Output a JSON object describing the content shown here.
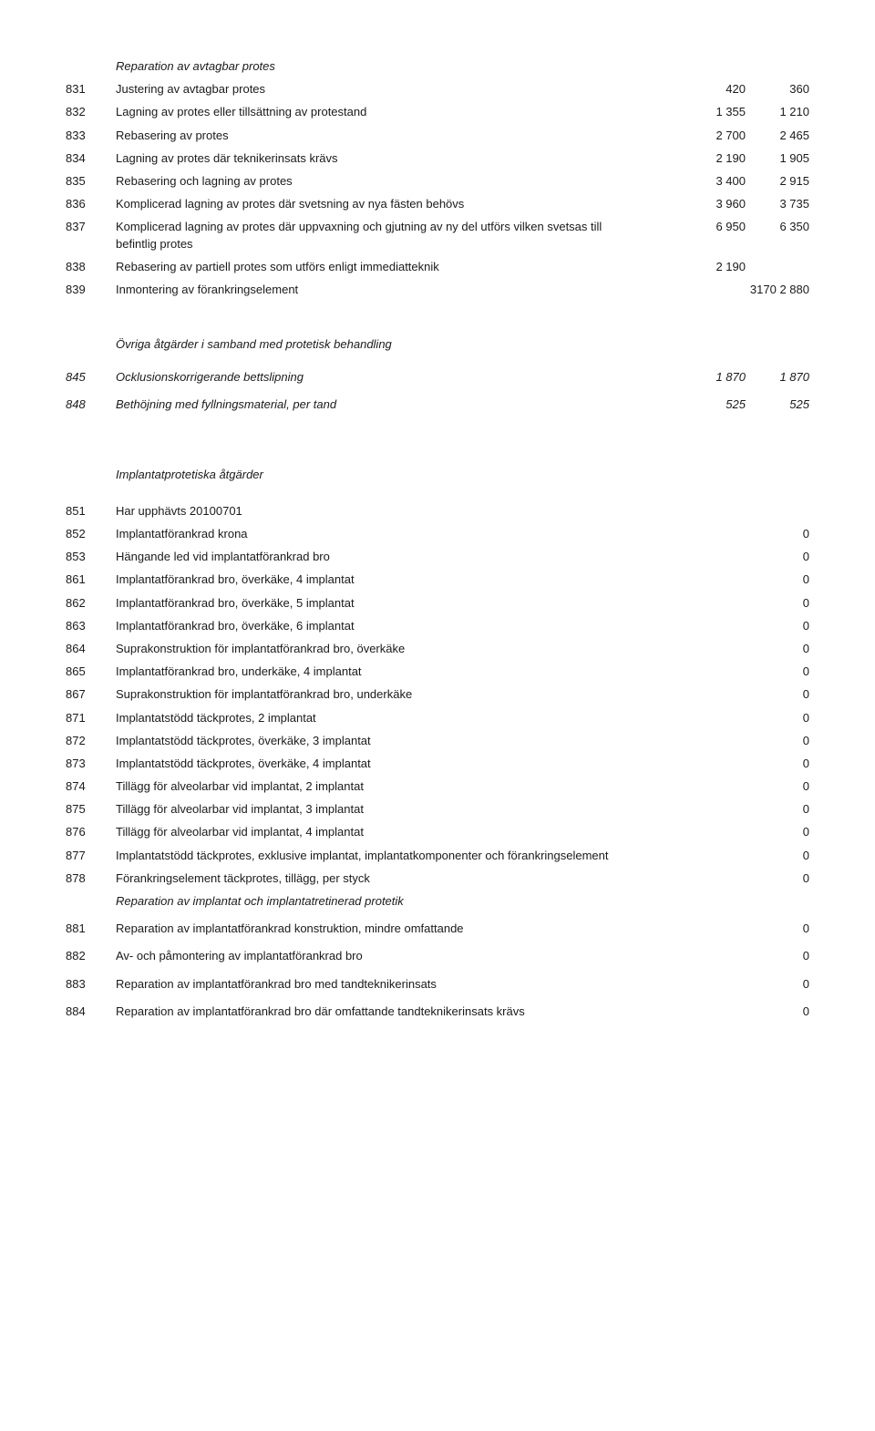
{
  "rows": [
    {
      "code": "",
      "desc": "Reparation av avtagbar protes",
      "v1": "",
      "v2": "",
      "italic": true
    },
    {
      "code": "831",
      "desc": "Justering av avtagbar protes",
      "v1": "420",
      "v2": "360"
    },
    {
      "code": "832",
      "desc": "Lagning av protes eller tillsättning av protestand",
      "v1": "1 355",
      "v2": "1 210"
    },
    {
      "code": "833",
      "desc": "Rebasering av protes",
      "v1": "2 700",
      "v2": "2 465"
    },
    {
      "code": "834",
      "desc": "Lagning av protes där teknikerinsats krävs",
      "v1": "2 190",
      "v2": "1 905"
    },
    {
      "code": "835",
      "desc": "Rebasering och lagning av protes",
      "v1": "3 400",
      "v2": "2 915"
    },
    {
      "code": "836",
      "desc": "Komplicerad lagning av protes där svetsning av nya fästen behövs",
      "v1": "3 960",
      "v2": "3 735"
    },
    {
      "code": "837",
      "desc": "Komplicerad lagning av protes där uppvaxning och gjutning av ny del utförs vilken svetsas till befintlig protes",
      "v1": "6 950",
      "v2": "6 350"
    },
    {
      "code": "838",
      "desc": "Rebasering av partiell protes som utförs enligt immediatteknik",
      "v1": "2 190",
      "v2": ""
    },
    {
      "code": "839",
      "desc": "Inmontering av förankringselement",
      "merged": "3170 2 880"
    },
    {
      "section": "Övriga åtgärder i samband med protetisk behandling"
    },
    {
      "code": "845",
      "desc": "Ocklusionskorrigerande bettslipning",
      "v1": "1 870",
      "v2": "1 870",
      "italic": true,
      "gap": true
    },
    {
      "code": "848",
      "desc": "Bethöjning med fyllningsmaterial, per tand",
      "v1": "525",
      "v2": "525",
      "italic": true,
      "gap": true
    },
    {
      "section": "Implantatprotetiska åtgärder",
      "xl": true
    },
    {
      "code": "851",
      "desc": "Har upphävts 20100701",
      "v1": "",
      "v2": ""
    },
    {
      "code": "852",
      "desc": "Implantatförankrad krona",
      "v1": "",
      "v2": "0"
    },
    {
      "code": "853",
      "desc": "Hängande led vid implantatförankrad bro",
      "v1": "",
      "v2": "0"
    },
    {
      "code": "861",
      "desc": "Implantatförankrad bro, överkäke, 4 implantat",
      "v1": "",
      "v2": "0"
    },
    {
      "code": "862",
      "desc": "Implantatförankrad bro, överkäke, 5 implantat",
      "v1": "",
      "v2": "0"
    },
    {
      "code": "863",
      "desc": "Implantatförankrad bro, överkäke, 6 implantat",
      "v1": "",
      "v2": "0"
    },
    {
      "code": "864",
      "desc": "Suprakonstruktion för implantatförankrad bro, överkäke",
      "v1": "",
      "v2": "0"
    },
    {
      "code": "865",
      "desc": "Implantatförankrad bro, underkäke, 4 implantat",
      "v1": "",
      "v2": "0"
    },
    {
      "code": "867",
      "desc": "Suprakonstruktion för implantatförankrad bro, underkäke",
      "v1": "",
      "v2": "0"
    },
    {
      "code": "871",
      "desc": "Implantatstödd täckprotes, 2 implantat",
      "v1": "",
      "v2": "0"
    },
    {
      "code": "872",
      "desc": "Implantatstödd täckprotes, överkäke, 3 implantat",
      "v1": "",
      "v2": "0"
    },
    {
      "code": "873",
      "desc": "Implantatstödd täckprotes, överkäke, 4 implantat",
      "v1": "",
      "v2": "0"
    },
    {
      "code": "874",
      "desc": "Tillägg för alveolarbar vid implantat, 2 implantat",
      "v1": "",
      "v2": "0"
    },
    {
      "code": "875",
      "desc": "Tillägg för alveolarbar vid implantat, 3 implantat",
      "v1": "",
      "v2": "0"
    },
    {
      "code": "876",
      "desc": "Tillägg för alveolarbar vid implantat, 4 implantat",
      "v1": "",
      "v2": "0"
    },
    {
      "code": "877",
      "desc": "Implantatstödd täckprotes, exklusive implantat, implantatkomponenter och förankringselement",
      "v1": "",
      "v2": "0"
    },
    {
      "code": "878",
      "desc": "Förankringselement täckprotes, tillägg, per styck",
      "v1": "",
      "v2": "0"
    },
    {
      "code": "",
      "desc": "Reparation av implantat och implantatretinerad protetik",
      "v1": "",
      "v2": "",
      "italic": true
    },
    {
      "code": "881",
      "desc": "Reparation av implantatförankrad konstruktion, mindre omfattande",
      "v1": "",
      "v2": "0",
      "gap": true
    },
    {
      "code": "882",
      "desc": "Av- och påmontering av implantatförankrad bro",
      "v1": "",
      "v2": "0",
      "gap": true
    },
    {
      "code": "883",
      "desc": "Reparation av implantatförankrad bro med tandteknikerinsats",
      "v1": "",
      "v2": "0",
      "gap": true
    },
    {
      "code": "884",
      "desc": "Reparation av implantatförankrad bro där omfattande tandteknikerinsats krävs",
      "v1": "",
      "v2": "0",
      "gap": true
    }
  ]
}
